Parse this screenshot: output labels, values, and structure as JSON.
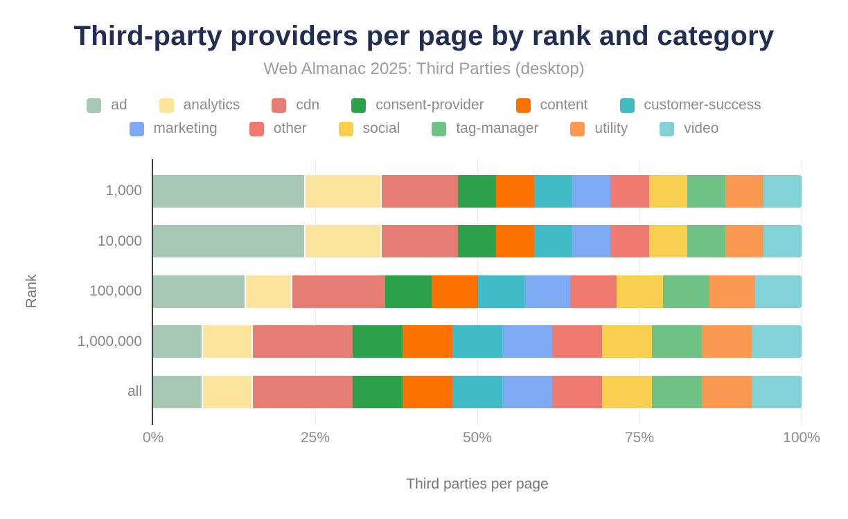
{
  "header": {
    "title": "Third-party providers per page by rank and category",
    "subtitle": "Web Almanac 2025: Third Parties (desktop)",
    "title_color": "#212e52",
    "subtitle_color": "#9c9c9c"
  },
  "chart_data": {
    "type": "bar",
    "orientation": "horizontal",
    "stacking": "percent",
    "title": "Third-party providers per page by rank and category",
    "subtitle": "Web Almanac 2025: Third Parties (desktop)",
    "xlabel": "Third parties per page",
    "ylabel": "Rank",
    "xlim": [
      0,
      100
    ],
    "x_ticks": [
      "0%",
      "25%",
      "50%",
      "75%",
      "100%"
    ],
    "grid": "vertical",
    "legend_position": "top",
    "categories": [
      "1,000",
      "10,000",
      "100,000",
      "1,000,000",
      "all"
    ],
    "series": [
      {
        "name": "ad",
        "color": "#a6c8b5",
        "values": [
          23.5,
          23.5,
          14.3,
          7.7,
          7.7
        ]
      },
      {
        "name": "analytics",
        "color": "#fde49d",
        "values": [
          11.8,
          11.8,
          7.1,
          7.7,
          7.7
        ]
      },
      {
        "name": "cdn",
        "color": "#e57d72",
        "values": [
          11.8,
          11.8,
          14.3,
          15.4,
          15.4
        ]
      },
      {
        "name": "consent-provider",
        "color": "#2da04a",
        "values": [
          5.9,
          5.9,
          7.1,
          7.7,
          7.7
        ]
      },
      {
        "name": "content",
        "color": "#fb7100",
        "values": [
          5.9,
          5.9,
          7.1,
          7.7,
          7.7
        ]
      },
      {
        "name": "customer-success",
        "color": "#40bac4",
        "values": [
          5.9,
          5.9,
          7.1,
          7.7,
          7.7
        ]
      },
      {
        "name": "marketing",
        "color": "#7daaf2",
        "values": [
          5.9,
          5.9,
          7.1,
          7.7,
          7.7
        ]
      },
      {
        "name": "other",
        "color": "#ef7a70",
        "values": [
          5.9,
          5.9,
          7.1,
          7.7,
          7.7
        ]
      },
      {
        "name": "social",
        "color": "#f9cf4f",
        "values": [
          5.9,
          5.9,
          7.1,
          7.7,
          7.7
        ]
      },
      {
        "name": "tag-manager",
        "color": "#70c185",
        "values": [
          5.9,
          5.9,
          7.1,
          7.7,
          7.7
        ]
      },
      {
        "name": "utility",
        "color": "#fb9950",
        "values": [
          5.9,
          5.9,
          7.1,
          7.7,
          7.7
        ]
      },
      {
        "name": "video",
        "color": "#81d1d7",
        "values": [
          5.9,
          5.9,
          7.1,
          7.7,
          7.7
        ]
      }
    ],
    "axis_colors": {
      "axis_line": "#3f3f3f",
      "gridline": "#ebebeb",
      "tick_label": "#868b94",
      "axis_title": "#757575",
      "category_label": "#858585"
    }
  }
}
